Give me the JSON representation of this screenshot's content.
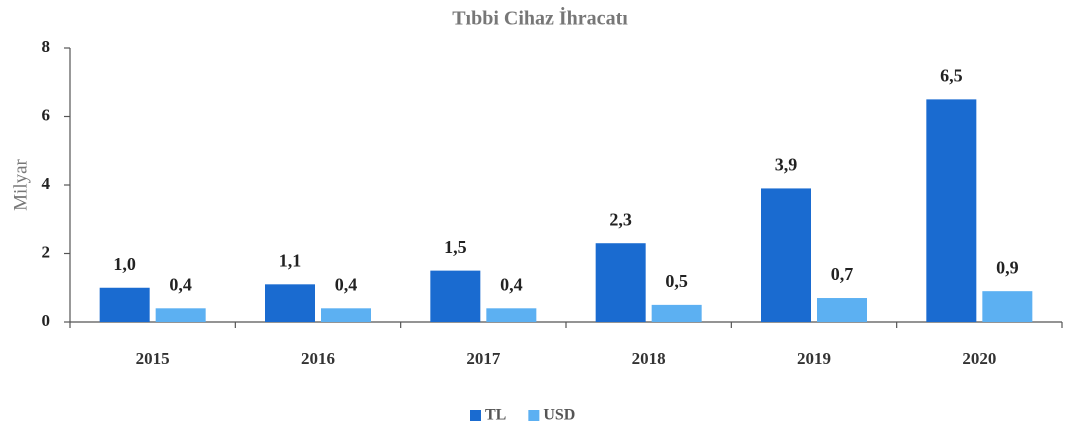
{
  "chart_data": {
    "type": "bar",
    "title": "Tıbbi Cihaz İhracatı",
    "y_label": "Milyar",
    "categories": [
      "2015",
      "2016",
      "2017",
      "2018",
      "2019",
      "2020"
    ],
    "series": [
      {
        "name": "TL",
        "color": "#1a6bd0",
        "values": [
          1.0,
          1.1,
          1.5,
          2.3,
          3.9,
          6.5
        ],
        "value_labels": [
          "1,0",
          "1,1",
          "1,5",
          "2,3",
          "3,9",
          "6,5"
        ]
      },
      {
        "name": "USD",
        "color": "#5cb0f2",
        "values": [
          0.4,
          0.4,
          0.4,
          0.5,
          0.7,
          0.9
        ],
        "value_labels": [
          "0,4",
          "0,4",
          "0,4",
          "0,5",
          "0,7",
          "0,9"
        ]
      }
    ],
    "ylim": [
      0,
      8
    ],
    "yticks": [
      0,
      2,
      4,
      6,
      8
    ],
    "grid": false,
    "legend": "bottom"
  }
}
